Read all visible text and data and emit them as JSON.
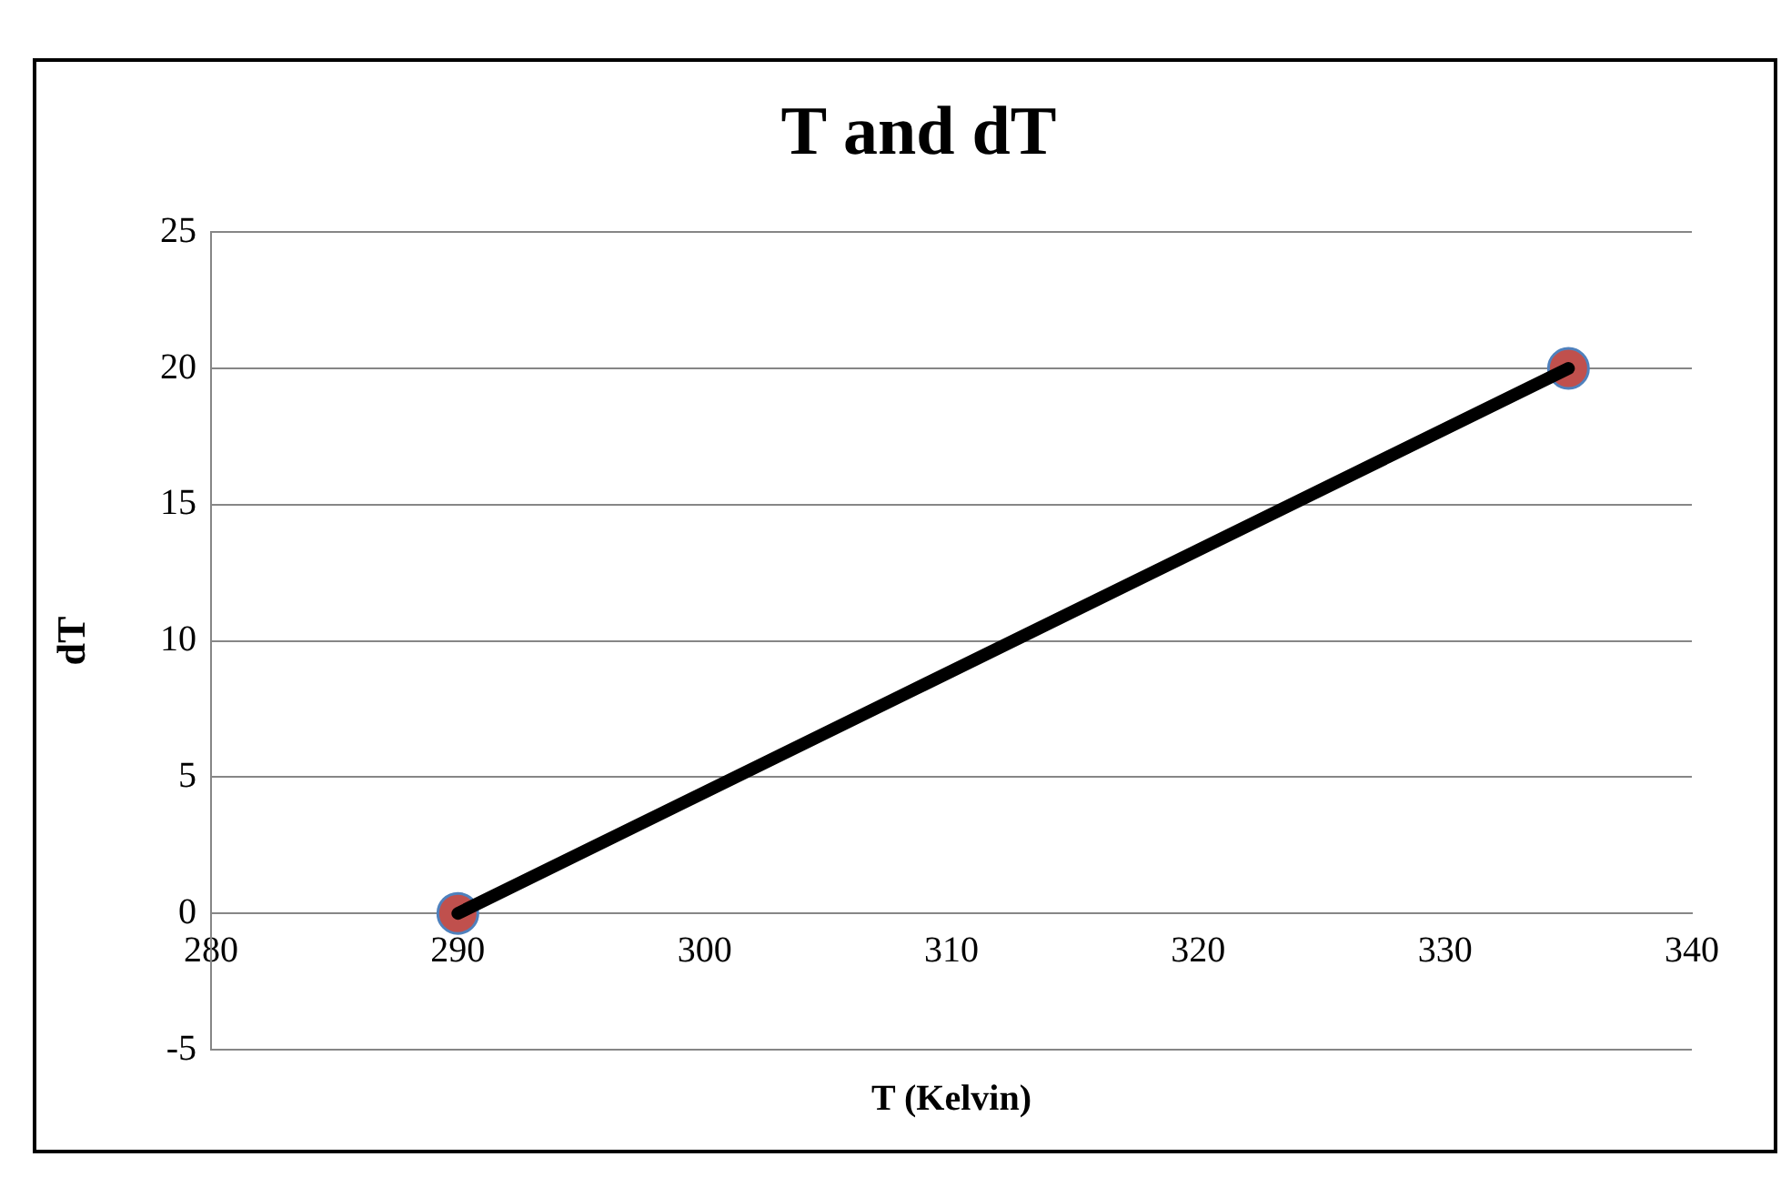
{
  "chart_data": {
    "type": "line",
    "title": "T and dT",
    "xlabel": "T (Kelvin)",
    "ylabel": "dT",
    "series": [
      {
        "type": "line",
        "color": "#000000",
        "values": [
          0,
          20
        ],
        "marker": "none"
      },
      {
        "type": "scatter",
        "color": "#c0504d",
        "values": [
          0,
          20
        ],
        "marker": "circle"
      }
    ],
    "x": [
      290,
      335
    ],
    "xlim": [
      280,
      340
    ],
    "xticks": [
      280,
      290,
      300,
      310,
      320,
      330,
      340
    ],
    "ylim": [
      -5,
      25
    ],
    "yticks": [
      -5,
      0,
      5,
      10,
      15,
      20,
      25
    ],
    "grid": "y",
    "legend": false
  }
}
